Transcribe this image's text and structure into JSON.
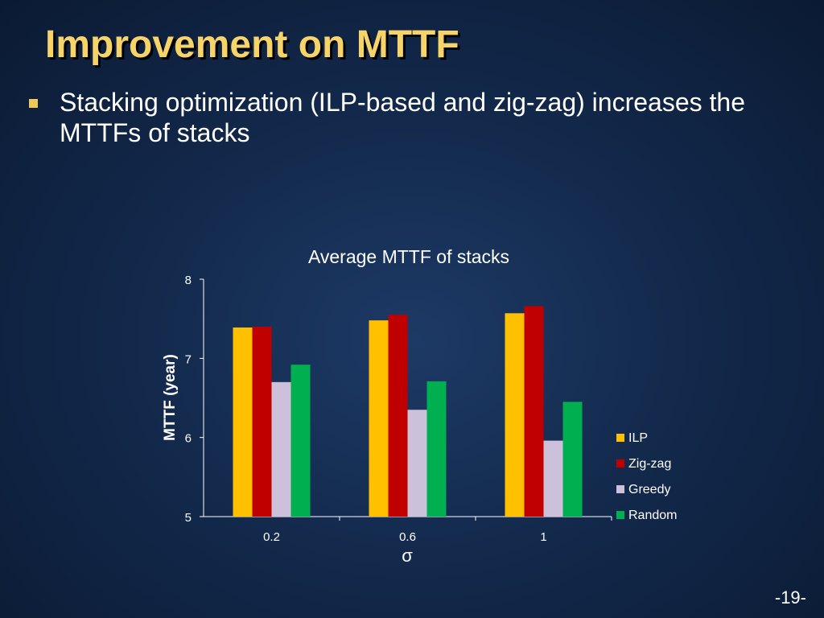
{
  "slide": {
    "title": "Improvement on MTTF",
    "bullet": "Stacking optimization (ILP-based and zig-zag) increases the MTTFs of stacks",
    "page_number": "-19-"
  },
  "chart_data": {
    "type": "bar",
    "title": "Average MTTF of stacks",
    "xlabel": "σ",
    "ylabel": "MTTF (year)",
    "categories": [
      "0.2",
      "0.6",
      "1"
    ],
    "ylim": [
      5,
      8
    ],
    "yticks": [
      "5",
      "6",
      "7",
      "8"
    ],
    "grid": false,
    "legend_position": "right",
    "series": [
      {
        "name": "ILP",
        "color": "#ffc000",
        "values": [
          7.39,
          7.48,
          7.57
        ]
      },
      {
        "name": "Zig-zag",
        "color": "#c00000",
        "values": [
          7.4,
          7.55,
          7.66
        ]
      },
      {
        "name": "Greedy",
        "color": "#ccc0da",
        "values": [
          6.7,
          6.35,
          5.96
        ]
      },
      {
        "name": "Random",
        "color": "#00b050",
        "values": [
          6.92,
          6.71,
          6.45
        ]
      }
    ]
  }
}
